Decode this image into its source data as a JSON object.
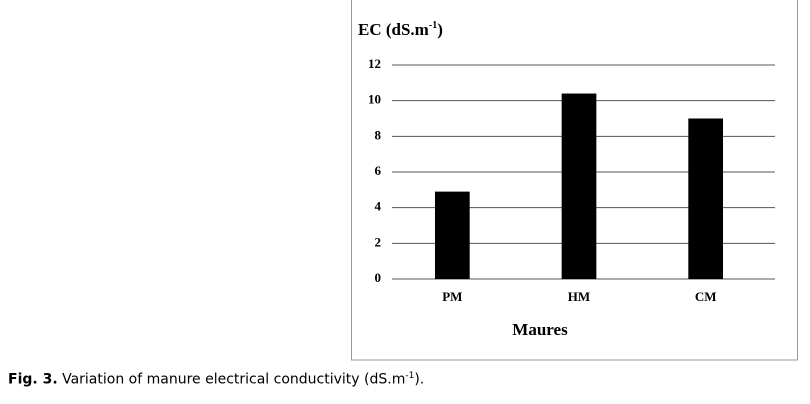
{
  "chart_data": {
    "type": "bar",
    "ylabel": {
      "text": "EC (dS.m",
      "sup": "-1",
      "tail": ")"
    },
    "xlabel": "Maures",
    "categories": [
      "PM",
      "HM",
      "CM"
    ],
    "values": [
      4.9,
      10.4,
      9.0
    ],
    "color": "#000000",
    "ylim": [
      0,
      12
    ],
    "yticks": [
      0,
      2,
      4,
      6,
      8,
      10,
      12
    ],
    "grid": true
  },
  "caption": {
    "label": "Fig. 3.",
    "text": "Variation of manure electrical conductivity (dS.m",
    "sup": "-1",
    "tail": ")."
  }
}
